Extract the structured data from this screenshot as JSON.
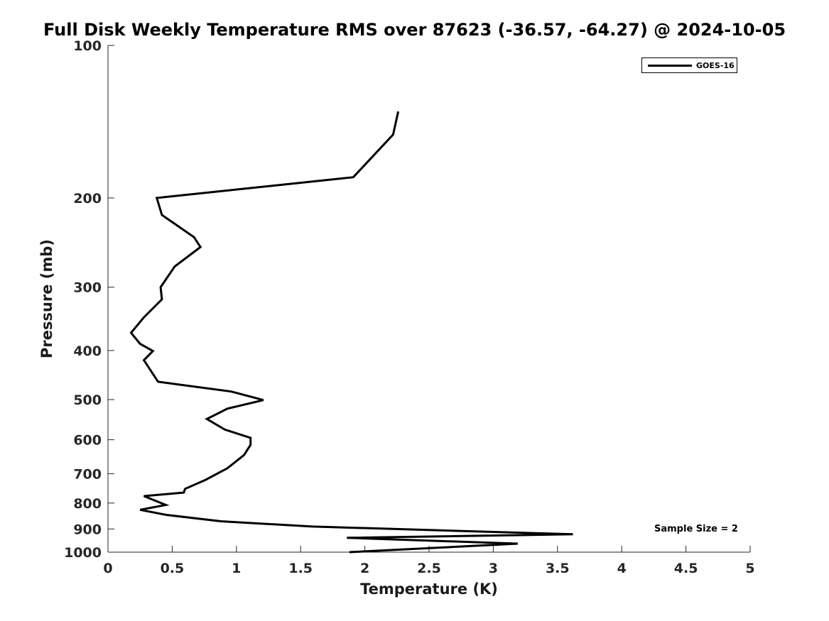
{
  "chart_data": {
    "type": "line",
    "title": "Full Disk Weekly Temperature RMS over 87623 (-36.57, -64.27) @ 2024-10-05",
    "xlabel": "Temperature (K)",
    "ylabel": "Pressure (mb)",
    "xlim": [
      0,
      5
    ],
    "ylim": [
      100,
      1000
    ],
    "y_scale": "log",
    "y_reversed": true,
    "x_ticks": [
      "0",
      "0.5",
      "1",
      "1.5",
      "2",
      "2.5",
      "3",
      "3.5",
      "4",
      "4.5",
      "5"
    ],
    "y_ticks": [
      "100",
      "200",
      "300",
      "400",
      "500",
      "600",
      "700",
      "800",
      "900",
      "1000"
    ],
    "grid": false,
    "legend_position": "top-right",
    "series": [
      {
        "name": "GOES-16",
        "color": "#000000",
        "points": [
          [
            2.26,
            135
          ],
          [
            2.22,
            150
          ],
          [
            1.91,
            182
          ],
          [
            0.38,
            200
          ],
          [
            0.42,
            216
          ],
          [
            0.67,
            239
          ],
          [
            0.72,
            250
          ],
          [
            0.52,
            273
          ],
          [
            0.41,
            300
          ],
          [
            0.42,
            317
          ],
          [
            0.28,
            344
          ],
          [
            0.18,
            369
          ],
          [
            0.25,
            388
          ],
          [
            0.35,
            401
          ],
          [
            0.28,
            418
          ],
          [
            0.39,
            461
          ],
          [
            0.96,
            482
          ],
          [
            1.21,
            501
          ],
          [
            0.93,
            521
          ],
          [
            0.77,
            546
          ],
          [
            0.91,
            573
          ],
          [
            1.11,
            595
          ],
          [
            1.11,
            614
          ],
          [
            1.06,
            643
          ],
          [
            0.93,
            683
          ],
          [
            0.76,
            720
          ],
          [
            0.6,
            750
          ],
          [
            0.59,
            763
          ],
          [
            0.28,
            775
          ],
          [
            0.45,
            807
          ],
          [
            0.25,
            825
          ],
          [
            0.45,
            844
          ],
          [
            0.88,
            869
          ],
          [
            1.59,
            890
          ],
          [
            3.62,
            922
          ],
          [
            1.86,
            937
          ],
          [
            3.19,
            962
          ],
          [
            1.88,
            1000
          ]
        ]
      }
    ],
    "annotation": "Sample Size = 2"
  }
}
